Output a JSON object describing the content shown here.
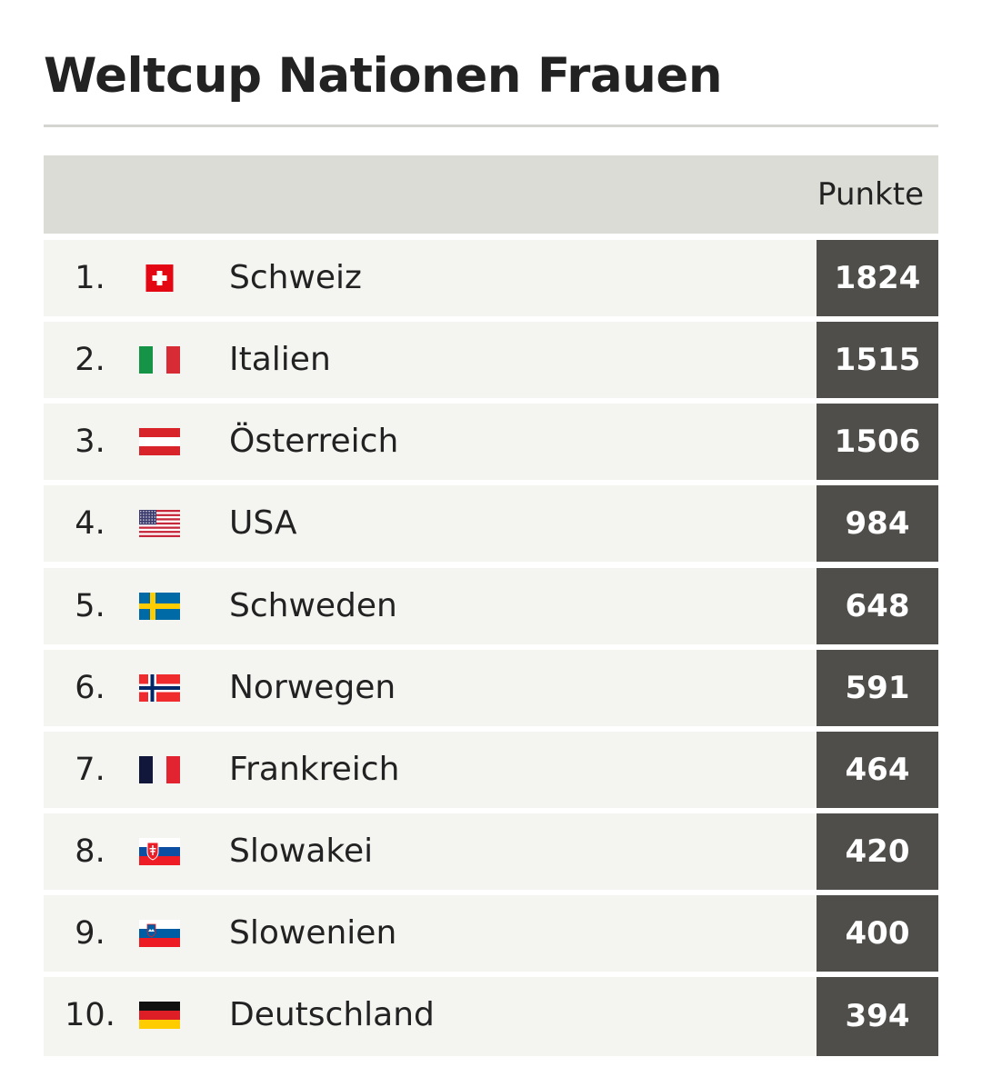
{
  "title": "Weltcup Nationen Frauen",
  "table": {
    "header": {
      "points_label": "Punkte"
    },
    "rows": [
      {
        "rank": "1.",
        "country": "Schweiz",
        "points": "1824",
        "flag_icon": "switzerland-flag-icon"
      },
      {
        "rank": "2.",
        "country": "Italien",
        "points": "1515",
        "flag_icon": "italy-flag-icon"
      },
      {
        "rank": "3.",
        "country": "Österreich",
        "points": "1506",
        "flag_icon": "austria-flag-icon"
      },
      {
        "rank": "4.",
        "country": "USA",
        "points": "984",
        "flag_icon": "usa-flag-icon"
      },
      {
        "rank": "5.",
        "country": "Schweden",
        "points": "648",
        "flag_icon": "sweden-flag-icon"
      },
      {
        "rank": "6.",
        "country": "Norwegen",
        "points": "591",
        "flag_icon": "norway-flag-icon"
      },
      {
        "rank": "7.",
        "country": "Frankreich",
        "points": "464",
        "flag_icon": "france-flag-icon"
      },
      {
        "rank": "8.",
        "country": "Slowakei",
        "points": "420",
        "flag_icon": "slovakia-flag-icon"
      },
      {
        "rank": "9.",
        "country": "Slowenien",
        "points": "400",
        "flag_icon": "slovenia-flag-icon"
      },
      {
        "rank": "10.",
        "country": "Deutschland",
        "points": "394",
        "flag_icon": "germany-flag-icon"
      }
    ]
  },
  "colors": {
    "header_bg": "#dcdcd6",
    "row_bg": "#f4f4f1",
    "points_cell_bg": "#4f4e4a",
    "points_text": "#ffffff",
    "rule": "#d4d4d0"
  },
  "chart_data": {
    "type": "table",
    "title": "Weltcup Nationen Frauen",
    "columns": [
      "",
      "",
      "",
      "Punkte"
    ],
    "categories": [
      "Schweiz",
      "Italien",
      "Österreich",
      "USA",
      "Schweden",
      "Norwegen",
      "Frankreich",
      "Slowakei",
      "Slowenien",
      "Deutschland"
    ],
    "values": [
      1824,
      1515,
      1506,
      984,
      648,
      591,
      464,
      420,
      400,
      394
    ]
  }
}
